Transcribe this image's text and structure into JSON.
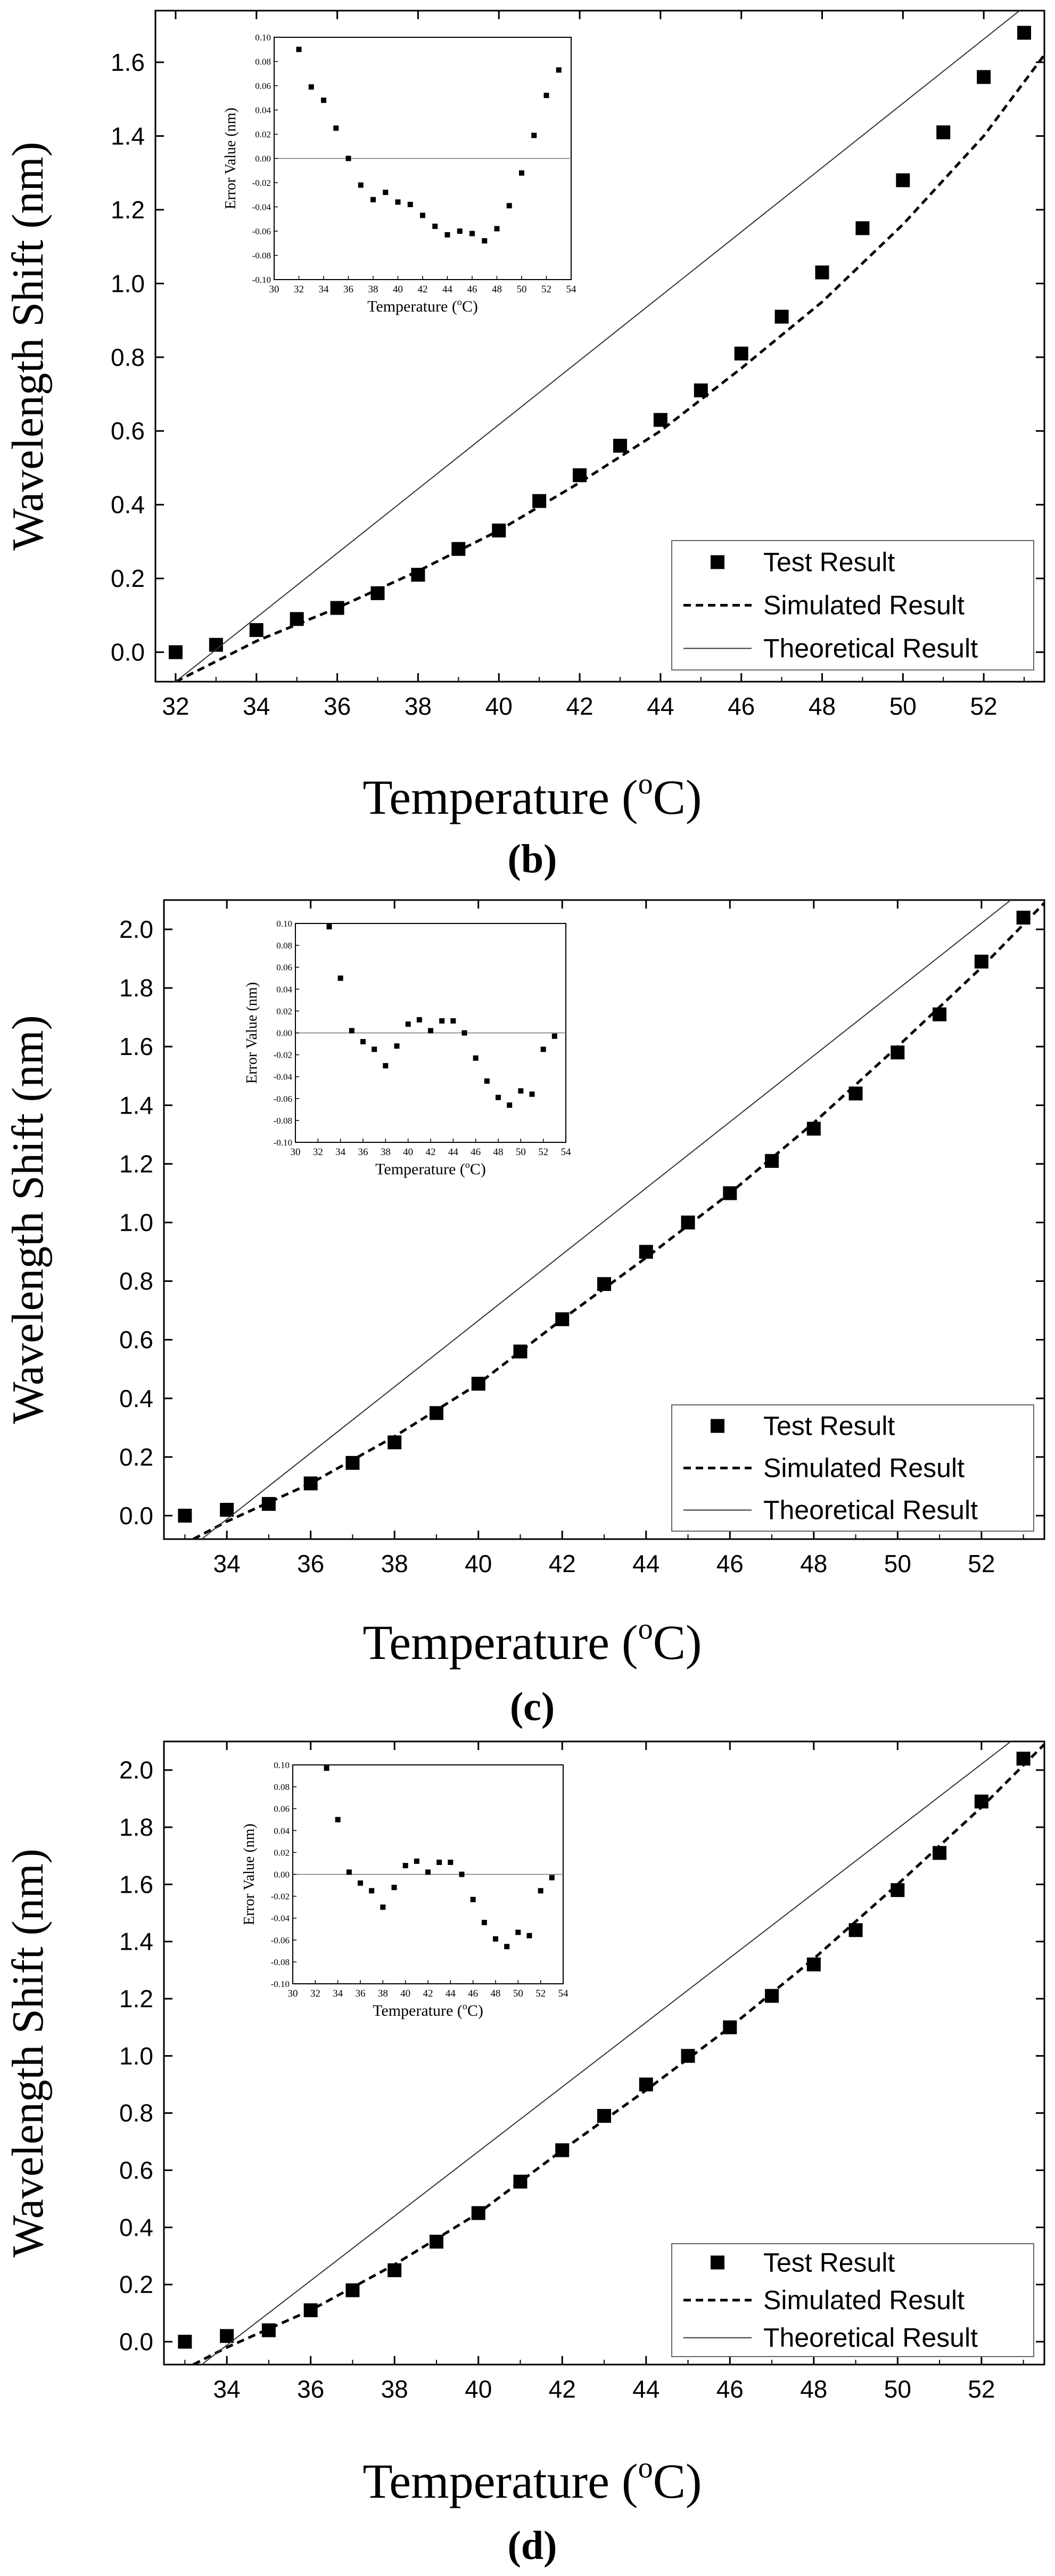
{
  "figure": {
    "panels": [
      "b",
      "c",
      "d"
    ]
  },
  "colors": {
    "axis": "#000000",
    "test_marker": "#000000",
    "simulated_line": "#000000",
    "theoretical_line": "#333333",
    "zero_line": "#777777",
    "background": "#ffffff"
  },
  "chart_data": [
    {
      "type": "line",
      "panel_label": "(b)",
      "xlabel": "Temperature (",
      "xlabel_sup": "o",
      "xlabel_unit": "C)",
      "ylabel": "Wavelength Shift (nm)",
      "xlim": [
        31.5,
        53.5
      ],
      "ylim": [
        -0.08,
        1.74
      ],
      "x_ticks": [
        32,
        34,
        36,
        38,
        40,
        42,
        44,
        46,
        48,
        50,
        52
      ],
      "y_ticks": [
        0.0,
        0.2,
        0.4,
        0.6,
        0.8,
        1.0,
        1.2,
        1.4,
        1.6
      ],
      "y_tick_labels": [
        "0.0",
        "0.2",
        "0.4",
        "0.6",
        "0.8",
        "1.0",
        "1.2",
        "1.4",
        "1.6"
      ],
      "legend_position": "bottom-right",
      "series": [
        {
          "name": "Test Result",
          "kind": "scatter",
          "x": [
            32,
            33,
            34,
            35,
            36,
            37,
            38,
            39,
            40,
            41,
            42,
            43,
            44,
            45,
            46,
            47,
            48,
            49,
            50,
            51,
            52,
            53
          ],
          "y": [
            0.0,
            0.02,
            0.06,
            0.09,
            0.12,
            0.16,
            0.21,
            0.28,
            0.33,
            0.41,
            0.48,
            0.56,
            0.63,
            0.71,
            0.81,
            0.91,
            1.03,
            1.15,
            1.28,
            1.41,
            1.56,
            1.68
          ]
        },
        {
          "name": "Simulated Result",
          "kind": "dashed",
          "x": [
            32,
            34,
            36,
            38,
            40,
            42,
            44,
            46,
            48,
            50,
            52,
            53.5
          ],
          "y": [
            -0.08,
            0.03,
            0.12,
            0.22,
            0.33,
            0.46,
            0.6,
            0.77,
            0.95,
            1.16,
            1.4,
            1.62
          ]
        },
        {
          "name": "Theoretical Result",
          "kind": "solid",
          "x": [
            32,
            53
          ],
          "y": [
            -0.08,
            1.75
          ]
        }
      ],
      "inset": {
        "xlabel": "Temperature (",
        "xlabel_sup": "o",
        "xlabel_unit": "C)",
        "ylabel": "Error Value (nm)",
        "xlim": [
          30,
          54
        ],
        "ylim": [
          -0.1,
          0.1
        ],
        "x_ticks": [
          30,
          32,
          34,
          36,
          38,
          40,
          42,
          44,
          46,
          48,
          50,
          52,
          54
        ],
        "y_ticks": [
          -0.1,
          -0.08,
          -0.06,
          -0.04,
          -0.02,
          0.0,
          0.02,
          0.04,
          0.06,
          0.08,
          0.1
        ],
        "y_tick_labels": [
          "-0.10",
          "-0.08",
          "-0.06",
          "-0.04",
          "-0.02",
          "0.00",
          "0.02",
          "0.04",
          "0.06",
          "0.08",
          "0.10"
        ],
        "x": [
          32,
          33,
          34,
          35,
          36,
          37,
          38,
          39,
          40,
          41,
          42,
          43,
          44,
          45,
          46,
          47,
          48,
          49,
          50,
          51,
          52,
          53
        ],
        "y": [
          0.09,
          0.059,
          0.048,
          0.025,
          0.0,
          -0.022,
          -0.034,
          -0.028,
          -0.036,
          -0.038,
          -0.047,
          -0.056,
          -0.063,
          -0.06,
          -0.062,
          -0.068,
          -0.058,
          -0.039,
          -0.012,
          0.019,
          0.052,
          0.073
        ]
      }
    },
    {
      "type": "line",
      "panel_label": "(c)",
      "xlabel": "Temperature (",
      "xlabel_sup": "o",
      "xlabel_unit": "C)",
      "ylabel": "Wavelength Shift (nm)",
      "xlim": [
        32.5,
        53.5
      ],
      "ylim": [
        -0.08,
        2.1
      ],
      "x_ticks": [
        34,
        36,
        38,
        40,
        42,
        44,
        46,
        48,
        50,
        52
      ],
      "y_ticks": [
        0.0,
        0.2,
        0.4,
        0.6,
        0.8,
        1.0,
        1.2,
        1.4,
        1.6,
        1.8,
        2.0
      ],
      "y_tick_labels": [
        "0.0",
        "0.2",
        "0.4",
        "0.6",
        "0.8",
        "1.0",
        "1.2",
        "1.4",
        "1.6",
        "1.8",
        "2.0"
      ],
      "legend_position": "bottom-right",
      "series": [
        {
          "name": "Test Result",
          "kind": "scatter",
          "x": [
            33,
            34,
            35,
            36,
            37,
            38,
            39,
            40,
            41,
            42,
            43,
            44,
            45,
            46,
            47,
            48,
            49,
            50,
            51,
            52,
            53
          ],
          "y": [
            0.0,
            0.02,
            0.04,
            0.11,
            0.18,
            0.25,
            0.35,
            0.45,
            0.56,
            0.67,
            0.79,
            0.9,
            1.0,
            1.1,
            1.21,
            1.32,
            1.44,
            1.58,
            1.71,
            1.89,
            2.04
          ]
        },
        {
          "name": "Simulated Result",
          "kind": "dashed",
          "x": [
            33.2,
            34,
            36,
            38,
            40,
            42,
            44,
            46,
            48,
            50,
            52,
            53.5
          ],
          "y": [
            -0.08,
            -0.02,
            0.11,
            0.27,
            0.45,
            0.67,
            0.88,
            1.1,
            1.34,
            1.6,
            1.87,
            2.09
          ]
        },
        {
          "name": "Theoretical Result",
          "kind": "solid",
          "x": [
            33.4,
            52.7
          ],
          "y": [
            -0.08,
            2.1
          ]
        }
      ],
      "inset": {
        "xlabel": "Temperature (",
        "xlabel_sup": "o",
        "xlabel_unit": "C)",
        "ylabel": "Error Value (nm)",
        "xlim": [
          30,
          54
        ],
        "ylim": [
          -0.1,
          0.1
        ],
        "x_ticks": [
          30,
          32,
          34,
          36,
          38,
          40,
          42,
          44,
          46,
          48,
          50,
          52,
          54
        ],
        "y_ticks": [
          -0.1,
          -0.08,
          -0.06,
          -0.04,
          -0.02,
          0.0,
          0.02,
          0.04,
          0.06,
          0.08,
          0.1
        ],
        "y_tick_labels": [
          "-0.10",
          "-0.08",
          "-0.06",
          "-0.04",
          "-0.02",
          "0.00",
          "0.02",
          "0.04",
          "0.06",
          "0.08",
          "0.10"
        ],
        "x": [
          33,
          34,
          35,
          36,
          37,
          38,
          39,
          40,
          41,
          42,
          43,
          44,
          45,
          46,
          47,
          48,
          49,
          50,
          51,
          52,
          53
        ],
        "y": [
          0.097,
          0.05,
          0.002,
          -0.008,
          -0.015,
          -0.03,
          -0.012,
          0.008,
          0.012,
          0.002,
          0.011,
          0.011,
          0.0,
          -0.023,
          -0.044,
          -0.059,
          -0.066,
          -0.053,
          -0.056,
          -0.015,
          -0.003
        ]
      }
    },
    {
      "type": "line",
      "panel_label": "(d)",
      "xlabel": "Temperature (",
      "xlabel_sup": "o",
      "xlabel_unit": "C)",
      "ylabel": "Wavelength Shift (nm)",
      "xlim": [
        32.5,
        53.5
      ],
      "ylim": [
        -0.08,
        2.1
      ],
      "x_ticks": [
        34,
        36,
        38,
        40,
        42,
        44,
        46,
        48,
        50,
        52
      ],
      "y_ticks": [
        0.0,
        0.2,
        0.4,
        0.6,
        0.8,
        1.0,
        1.2,
        1.4,
        1.6,
        1.8,
        2.0
      ],
      "y_tick_labels": [
        "0.0",
        "0.2",
        "0.4",
        "0.6",
        "0.8",
        "1.0",
        "1.2",
        "1.4",
        "1.6",
        "1.8",
        "2.0"
      ],
      "legend_position": "bottom-right",
      "series": [
        {
          "name": "Test Result",
          "kind": "scatter",
          "x": [
            33,
            34,
            35,
            36,
            37,
            38,
            39,
            40,
            41,
            42,
            43,
            44,
            45,
            46,
            47,
            48,
            49,
            50,
            51,
            52,
            53
          ],
          "y": [
            0.0,
            0.02,
            0.04,
            0.11,
            0.18,
            0.25,
            0.35,
            0.45,
            0.56,
            0.67,
            0.79,
            0.9,
            1.0,
            1.1,
            1.21,
            1.32,
            1.44,
            1.58,
            1.71,
            1.89,
            2.04
          ]
        },
        {
          "name": "Simulated Result",
          "kind": "dashed",
          "x": [
            33.2,
            34,
            36,
            38,
            40,
            42,
            44,
            46,
            48,
            50,
            52,
            53.5
          ],
          "y": [
            -0.08,
            -0.02,
            0.11,
            0.27,
            0.45,
            0.67,
            0.88,
            1.1,
            1.34,
            1.6,
            1.87,
            2.09
          ]
        },
        {
          "name": "Theoretical Result",
          "kind": "solid",
          "x": [
            33.4,
            52.7
          ],
          "y": [
            -0.08,
            2.1
          ]
        }
      ],
      "inset": {
        "xlabel": "Temperature (",
        "xlabel_sup": "o",
        "xlabel_unit": "C)",
        "ylabel": "Error Value (nm)",
        "xlim": [
          30,
          54
        ],
        "ylim": [
          -0.1,
          0.1
        ],
        "x_ticks": [
          30,
          32,
          34,
          36,
          38,
          40,
          42,
          44,
          46,
          48,
          50,
          52,
          54
        ],
        "y_ticks": [
          -0.1,
          -0.08,
          -0.06,
          -0.04,
          -0.02,
          0.0,
          0.02,
          0.04,
          0.06,
          0.08,
          0.1
        ],
        "y_tick_labels": [
          "-0.10",
          "-0.08",
          "-0.06",
          "-0.04",
          "-0.02",
          "0.00",
          "0.02",
          "0.04",
          "0.06",
          "0.08",
          "0.10"
        ],
        "x": [
          33,
          34,
          35,
          36,
          37,
          38,
          39,
          40,
          41,
          42,
          43,
          44,
          45,
          46,
          47,
          48,
          49,
          50,
          51,
          52,
          53
        ],
        "y": [
          0.097,
          0.05,
          0.002,
          -0.008,
          -0.015,
          -0.03,
          -0.012,
          0.008,
          0.012,
          0.002,
          0.011,
          0.011,
          0.0,
          -0.023,
          -0.044,
          -0.059,
          -0.066,
          -0.053,
          -0.056,
          -0.015,
          -0.003
        ]
      }
    }
  ]
}
